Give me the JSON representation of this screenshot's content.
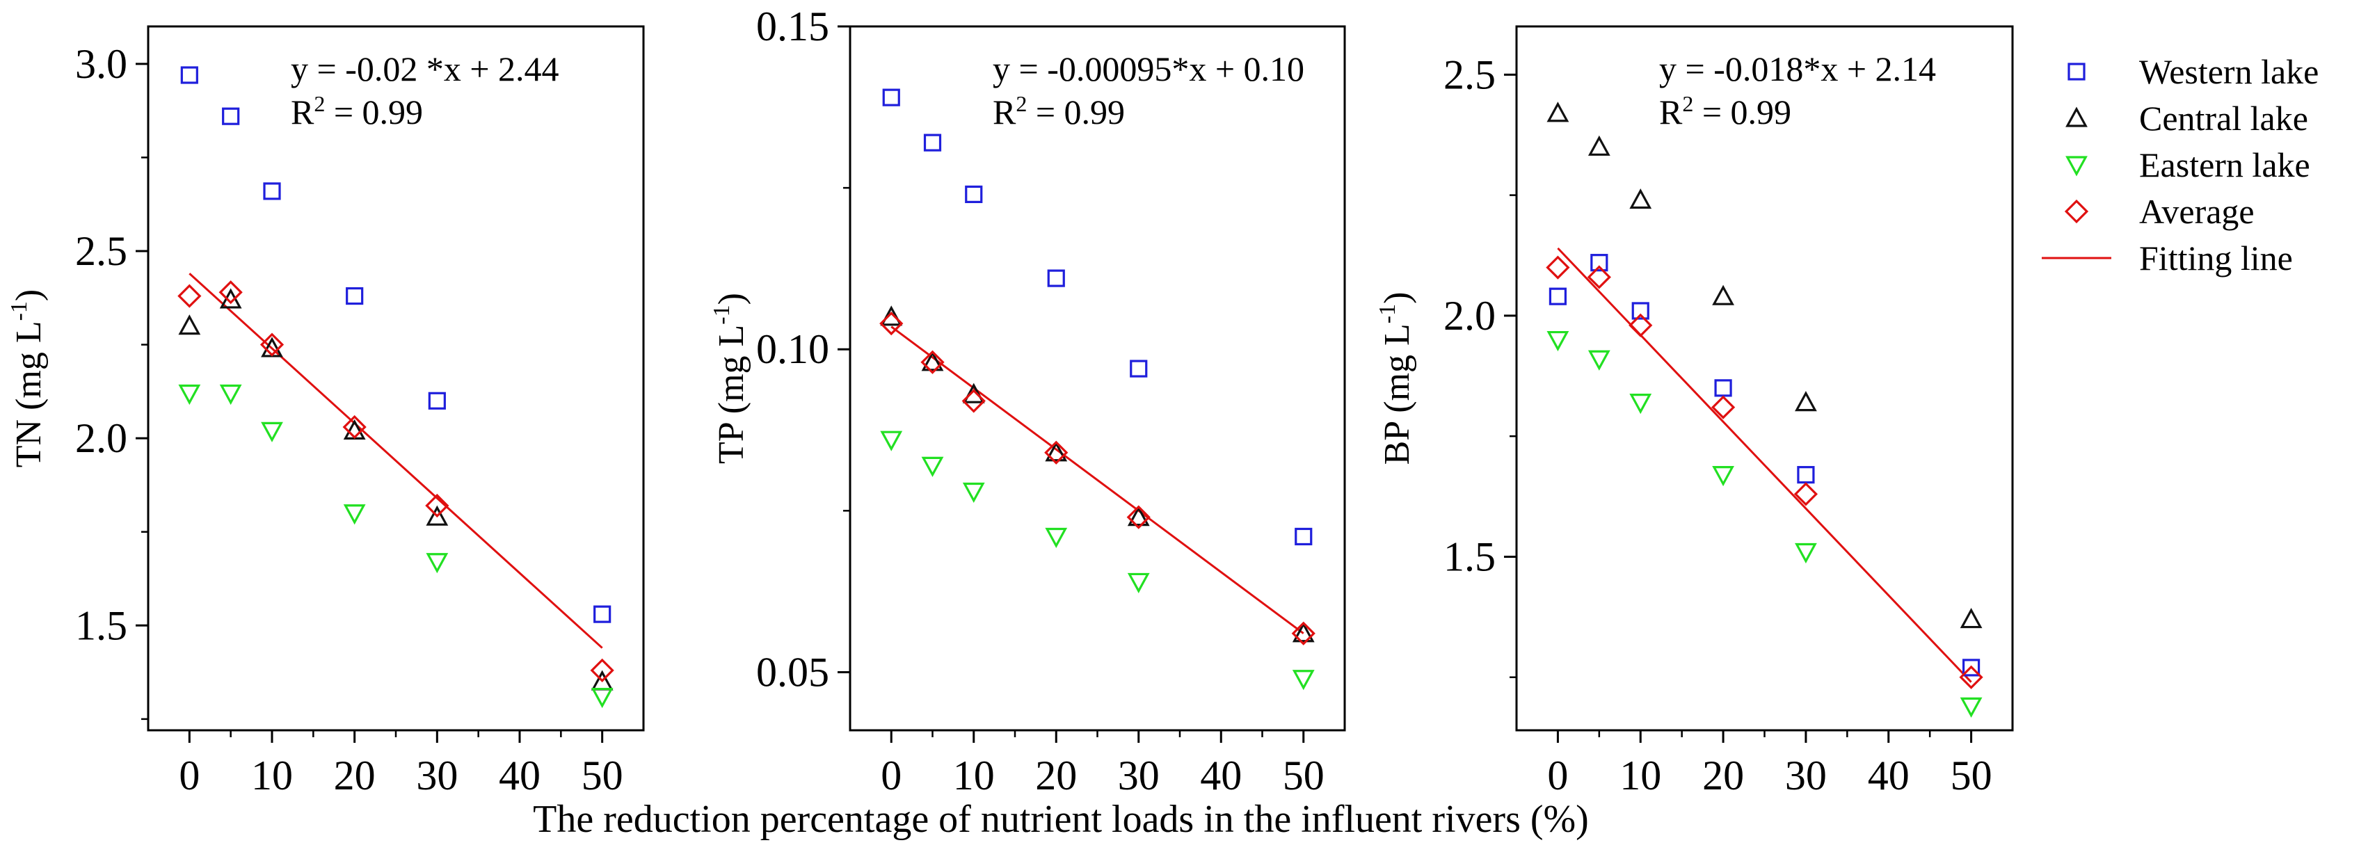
{
  "figure": {
    "shared_xlabel": "The reduction percentage of nutrient loads in the influent rivers (%)"
  },
  "legend": {
    "items": [
      {
        "label": "Western  lake",
        "marker": "square",
        "color": "#1f1fdc"
      },
      {
        "label": "Central lake",
        "marker": "triangle-up",
        "color": "#111111"
      },
      {
        "label": "Eastern lake",
        "marker": "triangle-down",
        "color": "#22e022"
      },
      {
        "label": "Average",
        "marker": "diamond",
        "color": "#e01010"
      },
      {
        "label": "Fitting line",
        "marker": "line",
        "color": "#e01010"
      }
    ]
  },
  "chart_data": [
    {
      "type": "scatter",
      "title": "",
      "ylabel_main": "TN (mg L",
      "ylabel_sup": "-1",
      "ylabel_end": ")",
      "xlabel": "The reduction percentage of nutrient loads in the influent rivers (%)",
      "xlim": [
        -5,
        55
      ],
      "ylim": [
        1.22,
        3.1
      ],
      "xticks": [
        0,
        10,
        20,
        30,
        40,
        50
      ],
      "yticks": [
        1.5,
        2.0,
        2.5,
        3.0
      ],
      "ytick_labels": [
        "1.5",
        "2.0",
        "2.5",
        "3.0"
      ],
      "equation": "y = -0.02 *x + 2.44",
      "r2_label": "R",
      "r2_sup": "2",
      "r2_value": " = 0.99",
      "x": [
        0,
        5,
        10,
        20,
        30,
        50
      ],
      "series": [
        {
          "name": "Western  lake",
          "values": [
            2.97,
            2.86,
            2.66,
            2.38,
            2.1,
            1.53
          ]
        },
        {
          "name": "Central lake",
          "values": [
            2.3,
            2.37,
            2.24,
            2.02,
            1.79,
            1.35
          ]
        },
        {
          "name": "Eastern lake",
          "values": [
            2.12,
            2.12,
            2.02,
            1.8,
            1.67,
            1.31
          ]
        },
        {
          "name": "Average",
          "values": [
            2.38,
            2.39,
            2.25,
            2.03,
            1.82,
            1.38
          ]
        }
      ],
      "fit": {
        "slope": -0.02,
        "intercept": 2.44,
        "x_range": [
          0,
          50
        ]
      }
    },
    {
      "type": "scatter",
      "title": "",
      "ylabel_main": "TP (mg L",
      "ylabel_sup": "-1",
      "ylabel_end": ")",
      "xlabel": "The reduction percentage of nutrient loads in the influent rivers (%)",
      "xlim": [
        -5,
        55
      ],
      "ylim": [
        0.041,
        0.15
      ],
      "xticks": [
        0,
        10,
        20,
        30,
        40,
        50
      ],
      "yticks": [
        0.05,
        0.1,
        0.15
      ],
      "ytick_labels": [
        "0.05",
        "0.10",
        "0.15"
      ],
      "equation": "y = -0.00095*x + 0.10",
      "r2_label": "R",
      "r2_sup": "2",
      "r2_value": " = 0.99",
      "x": [
        0,
        5,
        10,
        20,
        30,
        50
      ],
      "series": [
        {
          "name": "Western  lake",
          "values": [
            0.139,
            0.132,
            0.124,
            0.111,
            0.097,
            0.071
          ]
        },
        {
          "name": "Central lake",
          "values": [
            0.105,
            0.098,
            0.093,
            0.084,
            0.074,
            0.056
          ]
        },
        {
          "name": "Eastern lake",
          "values": [
            0.086,
            0.082,
            0.078,
            0.071,
            0.064,
            0.049
          ]
        },
        {
          "name": "Average",
          "values": [
            0.104,
            0.098,
            0.092,
            0.084,
            0.074,
            0.056
          ]
        }
      ],
      "fit": {
        "slope": -0.00095,
        "intercept": 0.1035,
        "x_range": [
          0,
          50
        ]
      }
    },
    {
      "type": "scatter",
      "title": "",
      "ylabel_main": "BP (mg L",
      "ylabel_sup": "-1",
      "ylabel_end": ")",
      "xlabel": "The reduction percentage of nutrient loads in the influent rivers (%)",
      "xlim": [
        -5,
        55
      ],
      "ylim": [
        1.14,
        2.6
      ],
      "xticks": [
        0,
        10,
        20,
        30,
        40,
        50
      ],
      "yticks": [
        1.5,
        2.0,
        2.5
      ],
      "ytick_labels": [
        "1.5",
        "2.0",
        "2.5"
      ],
      "equation": "y = -0.018*x + 2.14",
      "r2_label": "R",
      "r2_sup": "2",
      "r2_value": " = 0.99",
      "x": [
        0,
        5,
        10,
        20,
        30,
        50
      ],
      "series": [
        {
          "name": "Western  lake",
          "values": [
            2.04,
            2.11,
            2.01,
            1.85,
            1.67,
            1.27
          ]
        },
        {
          "name": "Central lake",
          "values": [
            2.42,
            2.35,
            2.24,
            2.04,
            1.82,
            1.37
          ]
        },
        {
          "name": "Eastern lake",
          "values": [
            1.95,
            1.91,
            1.82,
            1.67,
            1.51,
            1.19
          ]
        },
        {
          "name": "Average",
          "values": [
            2.1,
            2.08,
            1.98,
            1.81,
            1.63,
            1.25
          ]
        }
      ],
      "fit": {
        "slope": -0.018,
        "intercept": 2.14,
        "x_range": [
          0,
          50
        ]
      }
    }
  ]
}
